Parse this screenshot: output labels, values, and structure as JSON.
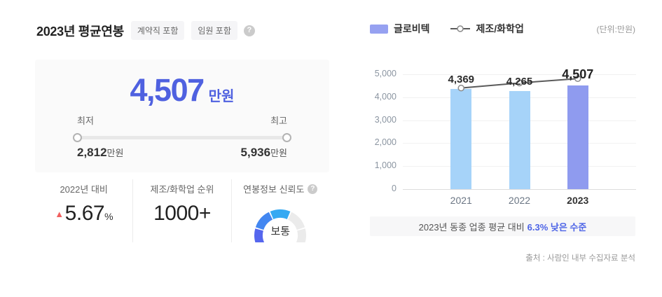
{
  "header": {
    "title": "2023년 평균연봉",
    "badges": [
      "계약직 포함",
      "임원 포함"
    ],
    "help_glyph": "?"
  },
  "salary_card": {
    "amount": "4,507",
    "unit": "만원",
    "min_label": "최저",
    "max_label": "최고",
    "min_value": "2,812",
    "min_unit": "만원",
    "max_value": "5,936",
    "max_unit": "만원"
  },
  "stats": {
    "yoy": {
      "label": "2022년 대비",
      "symbol": "▲",
      "value": "5.67",
      "suffix": "%"
    },
    "rank": {
      "label": "제조/화학업 순위",
      "value": "1000+"
    },
    "reliability": {
      "label": "연봉정보 신뢰도",
      "help_glyph": "?",
      "level_label": "보통",
      "gauge": {
        "segments": 5,
        "filled": 3,
        "colors": [
          "#5566ee",
          "#4387f1",
          "#35a9f2",
          "#ebebeb",
          "#ebebeb"
        ]
      }
    }
  },
  "legend": {
    "company": "글로비텍",
    "industry": "제조/화학업",
    "unit_note": "(단위:만원)",
    "company_color": "#96a1f1",
    "line_color": "#5b5b5b"
  },
  "caption": {
    "text": "2023년 동종 업종 평균 대비",
    "highlight": "6.3% 낮은 수준"
  },
  "source": "출처 : 사람인 내부 수집자료 분석",
  "chart_data": {
    "type": "bar",
    "categories": [
      "2021",
      "2022",
      "2023"
    ],
    "series": [
      {
        "name": "글로비텍",
        "type": "bar",
        "values": [
          4369,
          4265,
          4507
        ],
        "labels": [
          "4,369",
          "4,265",
          "4,507"
        ],
        "colors": [
          "#a6d3f9",
          "#a6d3f9",
          "#8f9bef"
        ],
        "emphasized_index": 2
      },
      {
        "name": "제조/화학업",
        "type": "line",
        "values": [
          4400,
          4620,
          4810
        ],
        "note": "estimated from marker positions; values not labeled on chart"
      }
    ],
    "title": "",
    "xlabel": "",
    "ylabel": "",
    "unit": "만원",
    "ylim": [
      0,
      5000
    ],
    "yticks": [
      0,
      1000,
      2000,
      3000,
      4000,
      5000
    ],
    "ytick_labels": [
      "0",
      "1,000",
      "2,000",
      "3,000",
      "4,000",
      "5,000"
    ],
    "grid": true,
    "legend_position": "top-left",
    "line_style": {
      "stroke": "#5b5b5b",
      "marker_fill": "#ffffff",
      "marker_stroke": "#8a8a8a"
    }
  }
}
